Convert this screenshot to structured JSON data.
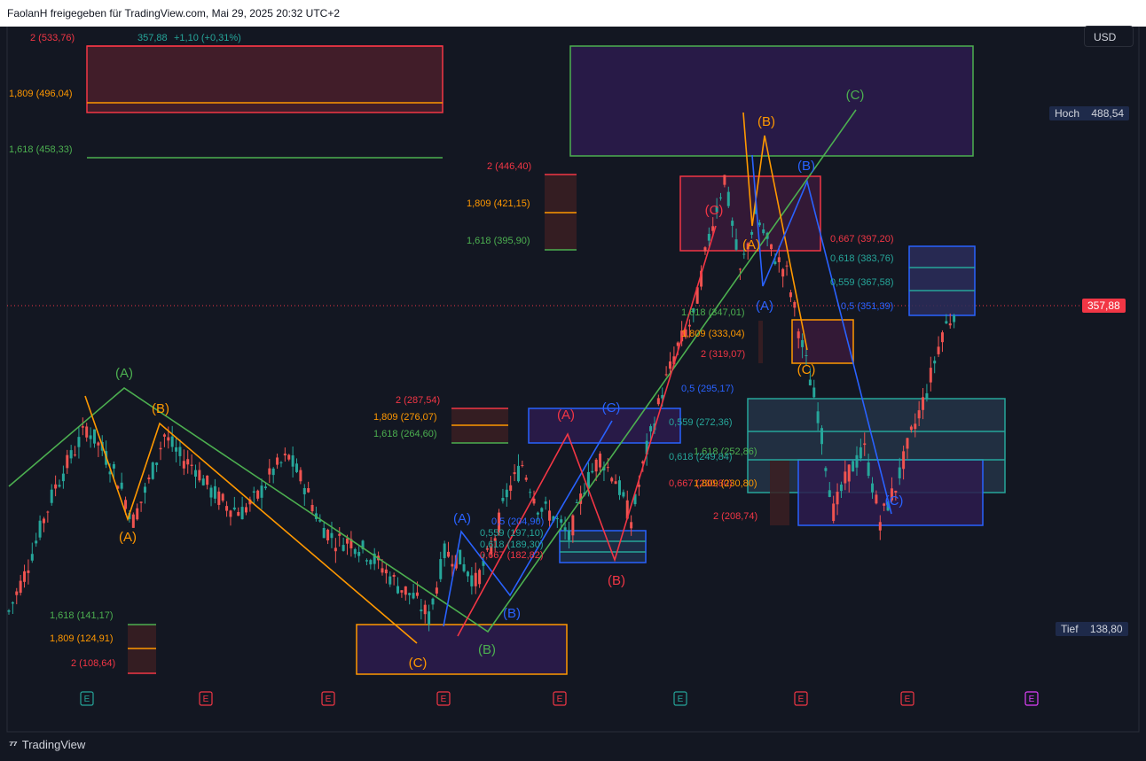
{
  "header": {
    "text": "FaolanH freigegeben für TradingView.com, Mai 29, 2025 20:32 UTC+2"
  },
  "currency": "USD",
  "price_axis": {
    "high_label": "Hoch",
    "high_value": "488,54",
    "low_label": "Tief",
    "low_value": "138,80",
    "current_price": "357,88"
  },
  "legend": {
    "price": "357,88",
    "change": "+1,10 (+0,31%)"
  },
  "footer": {
    "brand": "TradingView"
  },
  "colors": {
    "background": "#131722",
    "up": "#26a69a",
    "down": "#ef5350",
    "green": "#4caf50",
    "orange": "#ff9800",
    "red": "#f23645",
    "blue": "#2962ff",
    "purple_zone": "#2d1b4e"
  },
  "chart_data": {
    "type": "candlestick",
    "title": "",
    "ylim": [
      100,
      545
    ],
    "price_overview": [
      {
        "x": 0,
        "close": 150
      },
      {
        "x": 4,
        "close": 175
      },
      {
        "x": 8,
        "close": 205
      },
      {
        "x": 12,
        "close": 235
      },
      {
        "x": 16,
        "close": 255
      },
      {
        "x": 20,
        "close": 275
      },
      {
        "x": 24,
        "close": 260
      },
      {
        "x": 28,
        "close": 240
      },
      {
        "x": 32,
        "close": 212
      },
      {
        "x": 36,
        "close": 238
      },
      {
        "x": 40,
        "close": 270
      },
      {
        "x": 44,
        "close": 255
      },
      {
        "x": 48,
        "close": 248
      },
      {
        "x": 52,
        "close": 232
      },
      {
        "x": 56,
        "close": 222
      },
      {
        "x": 60,
        "close": 218
      },
      {
        "x": 64,
        "close": 228
      },
      {
        "x": 68,
        "close": 246
      },
      {
        "x": 72,
        "close": 255
      },
      {
        "x": 76,
        "close": 236
      },
      {
        "x": 80,
        "close": 210
      },
      {
        "x": 84,
        "close": 198
      },
      {
        "x": 88,
        "close": 198
      },
      {
        "x": 92,
        "close": 190
      },
      {
        "x": 96,
        "close": 180
      },
      {
        "x": 100,
        "close": 168
      },
      {
        "x": 104,
        "close": 160
      },
      {
        "x": 108,
        "close": 146
      },
      {
        "x": 112,
        "close": 190
      },
      {
        "x": 116,
        "close": 185
      },
      {
        "x": 120,
        "close": 170
      },
      {
        "x": 124,
        "close": 192
      },
      {
        "x": 128,
        "close": 230
      },
      {
        "x": 132,
        "close": 250
      },
      {
        "x": 136,
        "close": 222
      },
      {
        "x": 140,
        "close": 215
      },
      {
        "x": 144,
        "close": 200
      },
      {
        "x": 148,
        "close": 235
      },
      {
        "x": 152,
        "close": 255
      },
      {
        "x": 156,
        "close": 240
      },
      {
        "x": 160,
        "close": 212
      },
      {
        "x": 164,
        "close": 260
      },
      {
        "x": 168,
        "close": 300
      },
      {
        "x": 172,
        "close": 330
      },
      {
        "x": 176,
        "close": 350
      },
      {
        "x": 180,
        "close": 405
      },
      {
        "x": 184,
        "close": 445
      },
      {
        "x": 188,
        "close": 380
      },
      {
        "x": 192,
        "close": 420
      },
      {
        "x": 196,
        "close": 395
      },
      {
        "x": 200,
        "close": 380
      },
      {
        "x": 204,
        "close": 330
      },
      {
        "x": 208,
        "close": 285
      },
      {
        "x": 212,
        "close": 218
      },
      {
        "x": 216,
        "close": 245
      },
      {
        "x": 220,
        "close": 260
      },
      {
        "x": 224,
        "close": 212
      },
      {
        "x": 228,
        "close": 235
      },
      {
        "x": 232,
        "close": 270
      },
      {
        "x": 236,
        "close": 300
      },
      {
        "x": 240,
        "close": 340
      },
      {
        "x": 244,
        "close": 358
      }
    ],
    "fib_levels": [
      {
        "text": "2 (533,76)",
        "color": "#f23645"
      },
      {
        "text": "1,809 (496,04)",
        "color": "#ff9800"
      },
      {
        "text": "1,618 (458,33)",
        "color": "#4caf50"
      },
      {
        "text": "2 (446,40)",
        "color": "#f23645"
      },
      {
        "text": "1,809 (421,15)",
        "color": "#ff9800"
      },
      {
        "text": "1,618 (395,90)",
        "color": "#4caf50"
      },
      {
        "text": "0,667 (397,20)",
        "color": "#f23645"
      },
      {
        "text": "0,618 (383,76)",
        "color": "#26a69a"
      },
      {
        "text": "0,559 (367,58)",
        "color": "#26a69a"
      },
      {
        "text": "0,5 (351,39)",
        "color": "#2962ff"
      },
      {
        "text": "1,618 (347,01)",
        "color": "#4caf50"
      },
      {
        "text": "1,809 (333,04)",
        "color": "#ff9800"
      },
      {
        "text": "2 (319,07)",
        "color": "#f23645"
      },
      {
        "text": "0,5 (295,17)",
        "color": "#2962ff"
      },
      {
        "text": "0,559 (272,36)",
        "color": "#26a69a"
      },
      {
        "text": "1,618 (252,86)",
        "color": "#4caf50"
      },
      {
        "text": "0,618 (249,84)",
        "color": "#26a69a"
      },
      {
        "text": "0,667 (230,80)",
        "color": "#f23645"
      },
      {
        "text": "1,809 (230,80)",
        "color": "#ff9800"
      },
      {
        "text": "2 (208,74)",
        "color": "#f23645"
      },
      {
        "text": "2 (287,54)",
        "color": "#f23645"
      },
      {
        "text": "1,809 (276,07)",
        "color": "#ff9800"
      },
      {
        "text": "1,618 (264,60)",
        "color": "#4caf50"
      },
      {
        "text": "0,5 (204,90)",
        "color": "#2962ff"
      },
      {
        "text": "0,559 (197,10)",
        "color": "#26a69a"
      },
      {
        "text": "0,618 (189,30)",
        "color": "#26a69a"
      },
      {
        "text": "0,667 (182,82)",
        "color": "#f23645"
      },
      {
        "text": "1,618 (141,17)",
        "color": "#4caf50"
      },
      {
        "text": "1,809 (124,91)",
        "color": "#ff9800"
      },
      {
        "text": "2 (108,64)",
        "color": "#f23645"
      }
    ],
    "wave_labels": [
      {
        "text": "(A)",
        "color": "#4caf50"
      },
      {
        "text": "(B)",
        "color": "#ff9800"
      },
      {
        "text": "(A)",
        "color": "#ff9800"
      },
      {
        "text": "(C)",
        "color": "#ff9800"
      },
      {
        "text": "(A)",
        "color": "#2962ff"
      },
      {
        "text": "(B)",
        "color": "#2962ff"
      },
      {
        "text": "(B)",
        "color": "#4caf50"
      },
      {
        "text": "(A)",
        "color": "#f23645"
      },
      {
        "text": "(C)",
        "color": "#2962ff"
      },
      {
        "text": "(B)",
        "color": "#f23645"
      },
      {
        "text": "(C)",
        "color": "#f23645"
      },
      {
        "text": "(A)",
        "color": "#ff9800"
      },
      {
        "text": "(B)",
        "color": "#ff9800"
      },
      {
        "text": "(C)",
        "color": "#4caf50"
      },
      {
        "text": "(B)",
        "color": "#2962ff"
      },
      {
        "text": "(A)",
        "color": "#2962ff"
      },
      {
        "text": "(C)",
        "color": "#ff9800"
      },
      {
        "text": "(C)",
        "color": "#2962ff"
      }
    ],
    "event_markers": [
      {
        "text": "E",
        "color": "#26a69a"
      },
      {
        "text": "E",
        "color": "#f23645"
      },
      {
        "text": "E",
        "color": "#f23645"
      },
      {
        "text": "E",
        "color": "#f23645"
      },
      {
        "text": "E",
        "color": "#f23645"
      },
      {
        "text": "E",
        "color": "#26a69a"
      },
      {
        "text": "E",
        "color": "#f23645"
      },
      {
        "text": "E",
        "color": "#f23645"
      },
      {
        "text": "E",
        "color": "#e040fb"
      }
    ]
  }
}
